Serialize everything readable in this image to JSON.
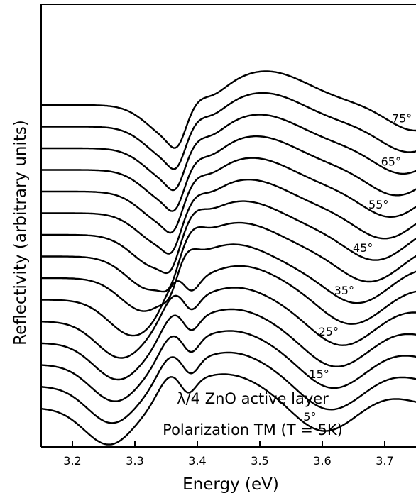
{
  "chart_data": {
    "type": "line",
    "title": "",
    "xlabel": "Energy (eV)",
    "ylabel": "Reflectivity (arbitrary units)",
    "xlim": [
      3.15,
      3.75
    ],
    "x_ticks": [
      3.2,
      3.3,
      3.4,
      3.5,
      3.6,
      3.7
    ],
    "x_tick_labels": [
      "3.2",
      "3.3",
      "3.4",
      "3.5",
      "3.6",
      "3.7"
    ],
    "y_ticks_shown": false,
    "grid": false,
    "annotations": [
      "λ/4 ZnO active layer",
      "Polarization TM (T = 5K)"
    ],
    "series": [
      {
        "label": "5°",
        "offset": 0,
        "dip1": 3.26,
        "dip2": 3.385,
        "peak": 3.355,
        "min2": 3.6
      },
      {
        "label": "",
        "offset": 1,
        "dip1": 3.265,
        "dip2": 3.39,
        "peak": 3.355,
        "min2": 3.61
      },
      {
        "label": "15°",
        "offset": 2,
        "dip1": 3.27,
        "dip2": 3.39,
        "peak": 3.357,
        "min2": 3.615
      },
      {
        "label": "",
        "offset": 3,
        "dip1": 3.275,
        "dip2": 3.39,
        "peak": 3.36,
        "min2": 3.62
      },
      {
        "label": "25°",
        "offset": 4,
        "dip1": 3.28,
        "dip2": 3.39,
        "peak": 3.362,
        "min2": 3.63
      },
      {
        "label": "",
        "offset": 5,
        "dip1": 3.3,
        "dip2": 3.39,
        "peak": 3.365,
        "min2": 3.645
      },
      {
        "label": "35°",
        "offset": 6,
        "dip1": 3.32,
        "dip2": 3.358,
        "peak": 3.38,
        "min2": 3.655
      },
      {
        "label": "",
        "offset": 7,
        "dip1": 3.33,
        "dip2": 3.356,
        "peak": 3.39,
        "min2": 3.675
      },
      {
        "label": "45°",
        "offset": 8,
        "dip1": 3.34,
        "dip2": 3.358,
        "peak": 3.392,
        "min2": 3.685
      },
      {
        "label": "",
        "offset": 9,
        "dip1": 3.35,
        "dip2": 3.36,
        "peak": 3.393,
        "min2": 3.7
      },
      {
        "label": "55°",
        "offset": 10,
        "dip1": 3.355,
        "dip2": 3.362,
        "peak": 3.394,
        "min2": 3.71
      },
      {
        "label": "",
        "offset": 11,
        "dip1": 3.36,
        "dip2": 3.365,
        "peak": 3.395,
        "min2": 3.72
      },
      {
        "label": "65°",
        "offset": 12,
        "dip1": 3.362,
        "dip2": 3.366,
        "peak": 3.396,
        "min2": 3.73
      },
      {
        "label": "",
        "offset": 13,
        "dip1": 3.363,
        "dip2": 3.367,
        "peak": 3.397,
        "min2": 3.74
      },
      {
        "label": "75°",
        "offset": 14,
        "dip1": 3.365,
        "dip2": 3.368,
        "peak": 3.398,
        "min2": 3.75
      }
    ]
  }
}
